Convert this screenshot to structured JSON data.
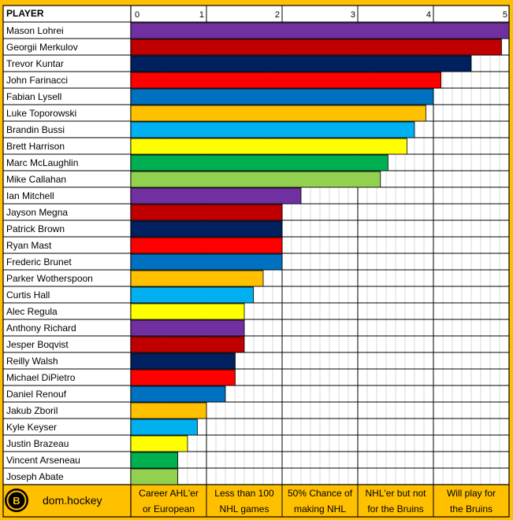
{
  "chart_data": {
    "type": "bar",
    "orientation": "horizontal",
    "header_label": "PLAYER",
    "x_ticks": [
      0,
      1,
      2,
      3,
      4,
      5
    ],
    "xlim": [
      0,
      5
    ],
    "grid": true,
    "categories": [
      "Mason Lohrei",
      "Georgii Merkulov",
      "Trevor Kuntar",
      "John Farinacci",
      "Fabian Lysell",
      "Luke Toporowski",
      "Brandin Bussi",
      "Brett Harrison",
      "Marc McLaughlin",
      "Mike Callahan",
      "Ian Mitchell",
      "Jayson Megna",
      "Patrick Brown",
      "Ryan Mast",
      "Frederic Brunet",
      "Parker Wotherspoon",
      "Curtis Hall",
      "Alec Regula",
      "Anthony Richard",
      "Jesper Boqvist",
      "Reilly Walsh",
      "Michael DiPietro",
      "Daniel Renouf",
      "Jakub Zboril",
      "Kyle Keyser",
      "Justin Brazeau",
      "Vincent Arseneau",
      "Joseph Abate"
    ],
    "values": [
      5,
      4.9,
      4.5,
      4.1,
      4.0,
      3.9,
      3.75,
      3.65,
      3.4,
      3.3,
      2.25,
      2.0,
      2.0,
      2.0,
      2.0,
      1.75,
      1.62,
      1.5,
      1.5,
      1.5,
      1.38,
      1.38,
      1.25,
      1.0,
      0.88,
      0.75,
      0.62,
      0.62
    ],
    "colors": [
      "#7030a0",
      "#c00000",
      "#002060",
      "#ff0000",
      "#0070c0",
      "#ffc000",
      "#00b0f0",
      "#ffff00",
      "#00b050",
      "#92d050",
      "#7030a0",
      "#c00000",
      "#002060",
      "#ff0000",
      "#0070c0",
      "#ffc000",
      "#00b0f0",
      "#ffff00",
      "#7030a0",
      "#c00000",
      "#002060",
      "#ff0000",
      "#0070c0",
      "#ffc000",
      "#00b0f0",
      "#ffff00",
      "#00b050",
      "#92d050"
    ],
    "footer_logo_text": "dom.hockey",
    "category_bands": [
      {
        "line1": "Career AHL'er",
        "line2": "or European"
      },
      {
        "line1": "Less than 100",
        "line2": "NHL games"
      },
      {
        "line1": "50% Chance of",
        "line2": "making NHL"
      },
      {
        "line1": "NHL'er but not",
        "line2": "for the Bruins"
      },
      {
        "line1": "Will play for",
        "line2": "the Bruins"
      }
    ],
    "background_color": "#ffc000",
    "grid_color": "#bfbfbf"
  }
}
